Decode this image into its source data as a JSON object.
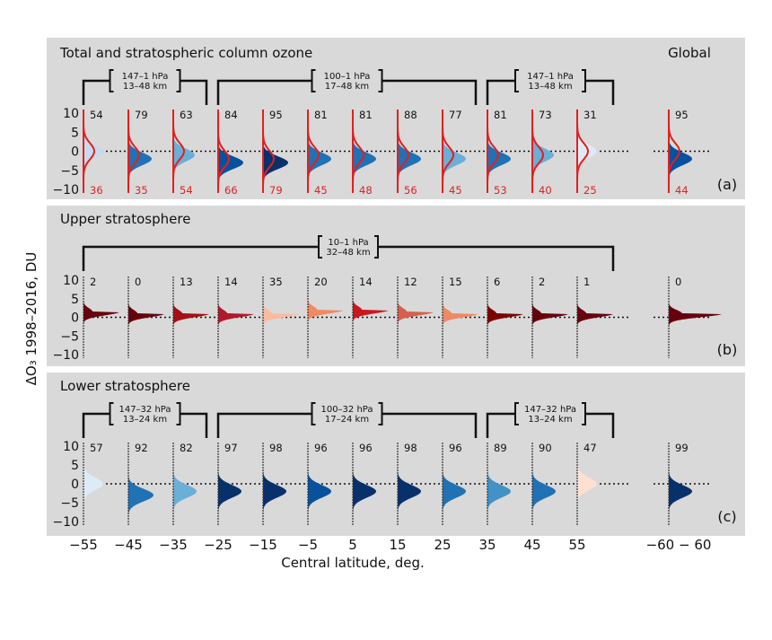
{
  "chart_data": {
    "type": "area",
    "ylabel": "ΔO₃ 1998–2016, DU",
    "xlabel": "Central latitude, deg.",
    "ylim": [
      -10,
      10
    ],
    "yticks": [
      "10",
      "5",
      "0",
      "−5",
      "−10"
    ],
    "x_tick_labels": [
      "−55",
      "−45",
      "−35",
      "−25",
      "−15",
      "−5",
      "5",
      "15",
      "25",
      "35",
      "45",
      "55",
      "−60 − 60"
    ],
    "columns": [
      "-55",
      "-45",
      "-35",
      "-25",
      "-15",
      "-5",
      "5",
      "15",
      "25",
      "35",
      "45",
      "55",
      "Global"
    ],
    "panels": [
      {
        "id": "a",
        "title": "Total and stratospheric column ozone",
        "global_label": "Global",
        "panel_label": "(a)",
        "brackets": [
          {
            "line1": "147–1 hPa",
            "line2": "13–48 km"
          },
          {
            "line1": "100–1 hPa",
            "line2": "17–48 km"
          },
          {
            "line1": "147–1 hPa",
            "line2": "13–48 km"
          }
        ],
        "top_numbers": [
          54,
          79,
          63,
          84,
          95,
          81,
          81,
          88,
          77,
          81,
          73,
          31,
          95
        ],
        "bottom_numbers": [
          36,
          35,
          54,
          66,
          79,
          45,
          48,
          56,
          45,
          53,
          40,
          25,
          44
        ],
        "fill_peaks_du": [
          0,
          -2,
          -1,
          -3,
          -3,
          -2,
          -2,
          -2,
          -2,
          -2,
          -1,
          0,
          -2
        ],
        "fill_colors": [
          "#c6dbef",
          "#2171b5",
          "#6baed6",
          "#08519c",
          "#08306b",
          "#2171b5",
          "#2171b5",
          "#2171b5",
          "#6baed6",
          "#2171b5",
          "#6baed6",
          "#deebf7",
          "#08519c"
        ],
        "line_peaks_du": [
          0,
          -1,
          0,
          -2,
          -2,
          -1,
          -1,
          -1,
          -1,
          -1,
          -1,
          0,
          0
        ],
        "line_color": "#e02020"
      },
      {
        "id": "b",
        "title": "Upper stratosphere",
        "panel_label": "(b)",
        "brackets": [
          {
            "line1": "10–1 hPa",
            "line2": "32–48 km"
          }
        ],
        "top_numbers": [
          2,
          0,
          13,
          14,
          35,
          20,
          14,
          12,
          15,
          6,
          2,
          1,
          0
        ],
        "fill_peaks_du": [
          1.5,
          1,
          1,
          1,
          1,
          2,
          2,
          1.5,
          1,
          1,
          1,
          1,
          1
        ],
        "fill_colors": [
          "#67000d",
          "#67000d",
          "#a50f15",
          "#b2182b",
          "#fcbba1",
          "#ef8a62",
          "#cb181d",
          "#d6604d",
          "#ef8a62",
          "#7f0000",
          "#67000d",
          "#67000d",
          "#67000d"
        ]
      },
      {
        "id": "c",
        "title": "Lower stratosphere",
        "panel_label": "(c)",
        "brackets": [
          {
            "line1": "147–32 hPa",
            "line2": "13–24 km"
          },
          {
            "line1": "100–32 hPa",
            "line2": "17–24 km"
          },
          {
            "line1": "147–32 hPa",
            "line2": "13–24 km"
          }
        ],
        "top_numbers": [
          57,
          92,
          82,
          97,
          98,
          96,
          96,
          98,
          96,
          89,
          90,
          47,
          99
        ],
        "fill_peaks_du": [
          0,
          -3,
          -2,
          -2,
          -2,
          -2,
          -2,
          -2,
          -2,
          -2,
          -2,
          0,
          -2
        ],
        "fill_colors": [
          "#deebf7",
          "#2171b5",
          "#6baed6",
          "#08306b",
          "#08306b",
          "#08519c",
          "#08306b",
          "#08306b",
          "#2171b5",
          "#4292c6",
          "#2171b5",
          "#fee0d2",
          "#08306b"
        ]
      }
    ]
  }
}
